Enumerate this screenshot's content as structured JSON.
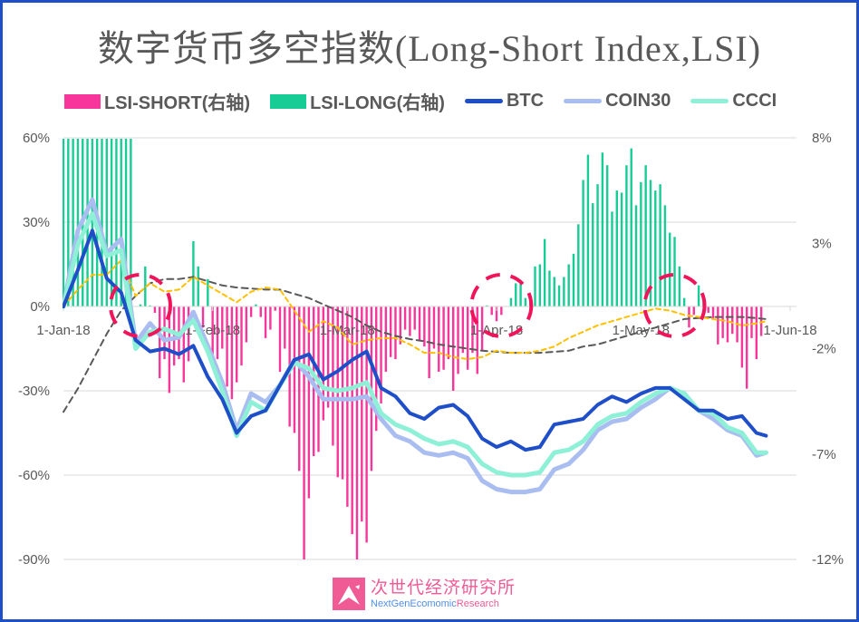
{
  "title": "数字货币多空指数(Long-Short Index,LSI)",
  "legend": [
    {
      "label": "LSI-SHORT(右轴)",
      "color": "#f7359a",
      "kind": "bar"
    },
    {
      "label": "LSI-LONG(右轴)",
      "color": "#17cc95",
      "kind": "bar"
    },
    {
      "label": "BTC",
      "color": "#1f4fc8",
      "kind": "line"
    },
    {
      "label": "COIN30",
      "color": "#a9bdf0",
      "kind": "line"
    },
    {
      "label": "CCCI",
      "color": "#8ef0d6",
      "kind": "line"
    }
  ],
  "logo": {
    "cn": "次世代经济研究所",
    "en_a": "NextGenEcomomic",
    "en_b": "Research"
  },
  "chart_data": {
    "type": "line",
    "title": "数字货币多空指数(Long-Short Index,LSI)",
    "xlim": [
      "2018-01-01",
      "2018-06-01"
    ],
    "x_ticks": [
      {
        "date": "2018-01-01",
        "label": "1-Jan-18"
      },
      {
        "date": "2018-02-01",
        "label": "1-Feb-18"
      },
      {
        "date": "2018-03-01",
        "label": "1-Mar-18"
      },
      {
        "date": "2018-04-01",
        "label": "1-Apr-18"
      },
      {
        "date": "2018-05-01",
        "label": "1-May-18"
      },
      {
        "date": "2018-06-01",
        "label": "1-Jun-18"
      }
    ],
    "y_left": {
      "ylim": [
        -90,
        60
      ],
      "ticks": [
        60,
        30,
        0,
        -30,
        -60,
        -90
      ],
      "tick_labels": [
        "60%",
        "30%",
        "0%",
        "-30%",
        "-60%",
        "-90%"
      ]
    },
    "y_right": {
      "ylim": [
        -12,
        8
      ],
      "ticks": [
        8,
        3,
        -2,
        -7,
        -12
      ],
      "tick_labels": [
        "8%",
        "3%",
        "-2%",
        "-7%",
        "-12%"
      ]
    },
    "grid": true,
    "legend_position": "top",
    "x": [
      "2018-01-01",
      "2018-01-04",
      "2018-01-07",
      "2018-01-10",
      "2018-01-13",
      "2018-01-16",
      "2018-01-19",
      "2018-01-22",
      "2018-01-25",
      "2018-01-28",
      "2018-01-31",
      "2018-02-03",
      "2018-02-06",
      "2018-02-09",
      "2018-02-12",
      "2018-02-15",
      "2018-02-18",
      "2018-02-21",
      "2018-02-24",
      "2018-02-27",
      "2018-03-02",
      "2018-03-05",
      "2018-03-08",
      "2018-03-11",
      "2018-03-14",
      "2018-03-17",
      "2018-03-20",
      "2018-03-23",
      "2018-03-26",
      "2018-03-29",
      "2018-04-01",
      "2018-04-04",
      "2018-04-07",
      "2018-04-10",
      "2018-04-13",
      "2018-04-16",
      "2018-04-19",
      "2018-04-22",
      "2018-04-25",
      "2018-04-28",
      "2018-05-01",
      "2018-05-04",
      "2018-05-07",
      "2018-05-10",
      "2018-05-13",
      "2018-05-16",
      "2018-05-19",
      "2018-05-22",
      "2018-05-25",
      "2018-05-27"
    ],
    "series": [
      {
        "name": "COIN30",
        "axis": "left",
        "color": "#a9bdf0",
        "values": [
          0,
          27,
          38,
          19,
          24,
          -13,
          -6,
          -12,
          -11,
          -2,
          -14,
          -27,
          -44,
          -31,
          -34,
          -28,
          -19,
          -25,
          -33,
          -33,
          -33,
          -32,
          -40,
          -46,
          -48,
          -52,
          -53,
          -52,
          -54,
          -62,
          -65,
          -66,
          -66,
          -65,
          -58,
          -56,
          -51,
          -44,
          -41,
          -40,
          -36,
          -33,
          -29,
          -31,
          -37,
          -40,
          -44,
          -46,
          -53,
          -52
        ]
      },
      {
        "name": "CCCI",
        "axis": "left",
        "color": "#8ef0d6",
        "values": [
          0,
          22,
          33,
          18,
          20,
          -15,
          -9,
          -8,
          -10,
          -5,
          -16,
          -30,
          -46,
          -34,
          -37,
          -28,
          -20,
          -22,
          -29,
          -30,
          -29,
          -27,
          -38,
          -42,
          -44,
          -47,
          -49,
          -48,
          -50,
          -56,
          -59,
          -60,
          -60,
          -59,
          -52,
          -51,
          -48,
          -42,
          -39,
          -38,
          -34,
          -31,
          -29,
          -31,
          -37,
          -38,
          -43,
          -45,
          -52,
          -52
        ]
      },
      {
        "name": "BTC",
        "axis": "left",
        "color": "#1f4fc8",
        "values": [
          0,
          13,
          27,
          10,
          5,
          -12,
          -16,
          -15,
          -17,
          -14,
          -25,
          -33,
          -45,
          -39,
          -37,
          -28,
          -19,
          -17,
          -26,
          -23,
          -19,
          -16,
          -29,
          -32,
          -38,
          -40,
          -36,
          -35,
          -39,
          -47,
          -50,
          -48,
          -51,
          -50,
          -42,
          -41,
          -40,
          -35,
          -32,
          -34,
          -31,
          -29,
          -29,
          -33,
          -37,
          -37,
          -40,
          -39,
          -45,
          -46
        ]
      },
      {
        "axis": "right",
        "style": "dashed",
        "color": "#595959",
        "values": [
          -5.0,
          -3.9,
          -2.6,
          -1.3,
          -0.2,
          0.5,
          1.1,
          1.3,
          1.3,
          1.4,
          1.2,
          1.0,
          0.9,
          0.85,
          0.8,
          0.8,
          0.6,
          0.4,
          0.1,
          -0.2,
          -0.5,
          -0.9,
          -1.2,
          -1.4,
          -1.55,
          -1.65,
          -1.8,
          -1.9,
          -2.0,
          -2.1,
          -2.15,
          -2.2,
          -2.2,
          -2.2,
          -2.15,
          -2.1,
          -1.9,
          -1.8,
          -1.6,
          -1.4,
          -1.2,
          -1.0,
          -0.8,
          -0.6,
          -0.55,
          -0.5,
          -0.5,
          -0.5,
          -0.55,
          -0.6
        ]
      },
      {
        "axis": "right",
        "style": "dashed",
        "color": "#ffc000",
        "values": [
          0,
          0.8,
          1.5,
          1.5,
          2.2,
          0.5,
          1.1,
          0.7,
          0.8,
          1.4,
          1.0,
          0.6,
          0.2,
          0.7,
          0.9,
          0.8,
          -0.2,
          -1.2,
          -0.7,
          -1.0,
          -1.8,
          -1.6,
          -1.5,
          -1.5,
          -1.8,
          -2.2,
          -2.2,
          -2.4,
          -2.5,
          -2.4,
          -2.1,
          -2.2,
          -2.2,
          -2.1,
          -1.9,
          -1.5,
          -1.2,
          -0.9,
          -0.7,
          -0.5,
          -0.3,
          -0.1,
          -0.2,
          -0.4,
          -0.5,
          -0.6,
          -0.7,
          -0.9,
          -0.8,
          -0.7
        ]
      }
    ],
    "lsi_bars": {
      "axis": "right",
      "positive_series": "LSI-LONG(右轴)",
      "negative_series": "LSI-SHORT(右轴)",
      "values": [
        [
          "2018-01-01",
          9
        ],
        [
          "2018-01-02",
          9
        ],
        [
          "2018-01-03",
          9
        ],
        [
          "2018-01-04",
          9
        ],
        [
          "2018-01-05",
          9
        ],
        [
          "2018-01-06",
          9
        ],
        [
          "2018-01-07",
          9
        ],
        [
          "2018-01-08",
          9
        ],
        [
          "2018-01-09",
          9
        ],
        [
          "2018-01-10",
          9
        ],
        [
          "2018-01-11",
          9
        ],
        [
          "2018-01-12",
          9
        ],
        [
          "2018-01-13",
          9
        ],
        [
          "2018-01-14",
          9
        ],
        [
          "2018-01-15",
          9
        ],
        [
          "2018-01-17",
          0.1
        ],
        [
          "2018-01-18",
          1.9
        ],
        [
          "2018-01-19",
          0.05
        ],
        [
          "2018-01-20",
          -0.3
        ],
        [
          "2018-01-21",
          -3.4
        ],
        [
          "2018-01-22",
          -2.5
        ],
        [
          "2018-01-23",
          -4.1
        ],
        [
          "2018-01-24",
          -2.8
        ],
        [
          "2018-01-25",
          -2.5
        ],
        [
          "2018-01-26",
          -3.6
        ],
        [
          "2018-01-27",
          -2.6
        ],
        [
          "2018-01-28",
          3.1
        ],
        [
          "2018-01-29",
          1.9
        ],
        [
          "2018-01-30",
          -1.0
        ],
        [
          "2018-01-31",
          1.3
        ],
        [
          "2018-02-01",
          -2.8
        ],
        [
          "2018-02-02",
          -2.5
        ],
        [
          "2018-02-03",
          -2.0
        ],
        [
          "2018-02-04",
          -3.8
        ],
        [
          "2018-02-05",
          -4.4
        ],
        [
          "2018-02-06",
          -3.6
        ],
        [
          "2018-02-07",
          -2.8
        ],
        [
          "2018-02-08",
          -1.7
        ],
        [
          "2018-02-09",
          -0.5
        ],
        [
          "2018-02-10",
          0.1
        ],
        [
          "2018-02-11",
          -0.5
        ],
        [
          "2018-02-12",
          -1.5
        ],
        [
          "2018-02-13",
          -1.1
        ],
        [
          "2018-02-14",
          -0.2
        ],
        [
          "2018-02-15",
          -3.1
        ],
        [
          "2018-02-16",
          -2.0
        ],
        [
          "2018-02-17",
          -5.7
        ],
        [
          "2018-02-18",
          -6.0
        ],
        [
          "2018-02-19",
          -7.8
        ],
        [
          "2018-02-20",
          -12
        ],
        [
          "2018-02-21",
          -9.1
        ],
        [
          "2018-02-22",
          -7.1
        ],
        [
          "2018-02-23",
          -6.9
        ],
        [
          "2018-02-24",
          -5.4
        ],
        [
          "2018-02-25",
          -4.8
        ],
        [
          "2018-02-26",
          -6.6
        ],
        [
          "2018-02-27",
          -8.1
        ],
        [
          "2018-02-28",
          -8.2
        ],
        [
          "2018-03-01",
          -9.5
        ],
        [
          "2018-03-02",
          -10.8
        ],
        [
          "2018-03-03",
          -12
        ],
        [
          "2018-03-04",
          -10.2
        ],
        [
          "2018-03-05",
          -11.2
        ],
        [
          "2018-03-06",
          -7.8
        ],
        [
          "2018-03-07",
          -5.9
        ],
        [
          "2018-03-08",
          -4.6
        ],
        [
          "2018-03-09",
          -3.1
        ],
        [
          "2018-03-10",
          -2.4
        ],
        [
          "2018-03-11",
          -2.5
        ],
        [
          "2018-03-12",
          -1.8
        ],
        [
          "2018-03-13",
          -1.1
        ],
        [
          "2018-03-14",
          -1.4
        ],
        [
          "2018-03-15",
          -1.1
        ],
        [
          "2018-03-16",
          -1.6
        ],
        [
          "2018-03-17",
          -1.9
        ],
        [
          "2018-03-18",
          -3.4
        ],
        [
          "2018-03-19",
          -2.0
        ],
        [
          "2018-03-20",
          -3.1
        ],
        [
          "2018-03-21",
          -3.0
        ],
        [
          "2018-03-22",
          -2.5
        ],
        [
          "2018-03-23",
          -4.0
        ],
        [
          "2018-03-24",
          -3.2
        ],
        [
          "2018-03-25",
          -2.2
        ],
        [
          "2018-03-26",
          -3.0
        ],
        [
          "2018-03-27",
          -2.2
        ],
        [
          "2018-03-28",
          -3.2
        ],
        [
          "2018-03-29",
          -2.1
        ],
        [
          "2018-03-30",
          0.05
        ],
        [
          "2018-03-31",
          -0.4
        ],
        [
          "2018-04-01",
          -0.7
        ],
        [
          "2018-04-02",
          -0.4
        ],
        [
          "2018-04-04",
          0.4
        ],
        [
          "2018-04-05",
          1.1
        ],
        [
          "2018-04-06",
          1.1
        ],
        [
          "2018-04-07",
          0.4
        ],
        [
          "2018-04-08",
          0.5
        ],
        [
          "2018-04-09",
          1.9
        ],
        [
          "2018-04-10",
          2.0
        ],
        [
          "2018-04-11",
          3.2
        ],
        [
          "2018-04-12",
          1.7
        ],
        [
          "2018-04-13",
          1.4
        ],
        [
          "2018-04-14",
          1.0
        ],
        [
          "2018-04-15",
          1.4
        ],
        [
          "2018-04-16",
          2.0
        ],
        [
          "2018-04-17",
          2.5
        ],
        [
          "2018-04-18",
          3.9
        ],
        [
          "2018-04-19",
          6.0
        ],
        [
          "2018-04-20",
          7.2
        ],
        [
          "2018-04-21",
          4.9
        ],
        [
          "2018-04-22",
          5.8
        ],
        [
          "2018-04-23",
          7.3
        ],
        [
          "2018-04-24",
          6.7
        ],
        [
          "2018-04-25",
          4.5
        ],
        [
          "2018-04-26",
          5.5
        ],
        [
          "2018-04-27",
          5.4
        ],
        [
          "2018-04-28",
          6.7
        ],
        [
          "2018-04-29",
          7.5
        ],
        [
          "2018-04-30",
          4.8
        ],
        [
          "2018-05-01",
          5.9
        ],
        [
          "2018-05-02",
          6.7
        ],
        [
          "2018-05-03",
          6.0
        ],
        [
          "2018-05-04",
          5.5
        ],
        [
          "2018-05-05",
          5.8
        ],
        [
          "2018-05-06",
          4.8
        ],
        [
          "2018-05-07",
          3.5
        ],
        [
          "2018-05-08",
          3.3
        ],
        [
          "2018-05-09",
          1.9
        ],
        [
          "2018-05-10",
          0.4
        ],
        [
          "2018-05-11",
          -1.0
        ],
        [
          "2018-05-12",
          -0.4
        ],
        [
          "2018-05-13",
          1.0
        ],
        [
          "2018-05-14",
          0.2
        ],
        [
          "2018-05-15",
          -0.3
        ],
        [
          "2018-05-16",
          -0.6
        ],
        [
          "2018-05-17",
          -1.8
        ],
        [
          "2018-05-18",
          -1.5
        ],
        [
          "2018-05-19",
          -1.7
        ],
        [
          "2018-05-20",
          -1.3
        ],
        [
          "2018-05-21",
          -1.7
        ],
        [
          "2018-05-22",
          -2.9
        ],
        [
          "2018-05-23",
          -3.9
        ],
        [
          "2018-05-24",
          -1.5
        ],
        [
          "2018-05-25",
          -2.5
        ],
        [
          "2018-05-26",
          -1.4
        ]
      ]
    },
    "annotations": [
      {
        "type": "dashed-circle",
        "color": "#f0145a",
        "center_date": "2018-01-17"
      },
      {
        "type": "dashed-circle",
        "color": "#f0145a",
        "center_date": "2018-04-02"
      },
      {
        "type": "dashed-circle",
        "color": "#f0145a",
        "center_date": "2018-05-08"
      }
    ]
  }
}
